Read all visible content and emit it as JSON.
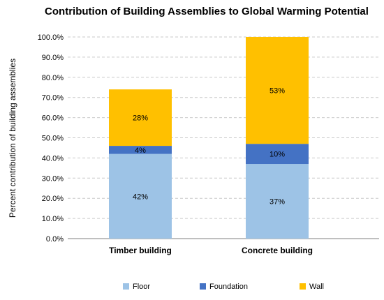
{
  "chart_data": {
    "type": "bar",
    "stacked": true,
    "title": "Contribution of Building Assemblies to Global Warming Potential",
    "xlabel": "",
    "ylabel": "Percent contribution of building assemblies",
    "categories": [
      "Timber building",
      "Concrete building"
    ],
    "series": [
      {
        "name": "Floor",
        "color": "#9dc3e6",
        "values": [
          42,
          37
        ],
        "labels": [
          "42%",
          "37%"
        ]
      },
      {
        "name": "Foundation",
        "color": "#4472c4",
        "values": [
          4,
          10
        ],
        "labels": [
          "4%",
          "10%"
        ]
      },
      {
        "name": "Wall",
        "color": "#ffc000",
        "values": [
          28,
          53
        ],
        "labels": [
          "28%",
          "53%"
        ]
      }
    ],
    "ylim": [
      0,
      100
    ],
    "yticks": [
      0,
      10,
      20,
      30,
      40,
      50,
      60,
      70,
      80,
      90,
      100
    ],
    "ytick_labels": [
      "0.0%",
      "10.0%",
      "20.0%",
      "30.0%",
      "40.0%",
      "50.0%",
      "60.0%",
      "70.0%",
      "80.0%",
      "90.0%",
      "100.0%"
    ],
    "grid": true,
    "legend_position": "bottom"
  }
}
